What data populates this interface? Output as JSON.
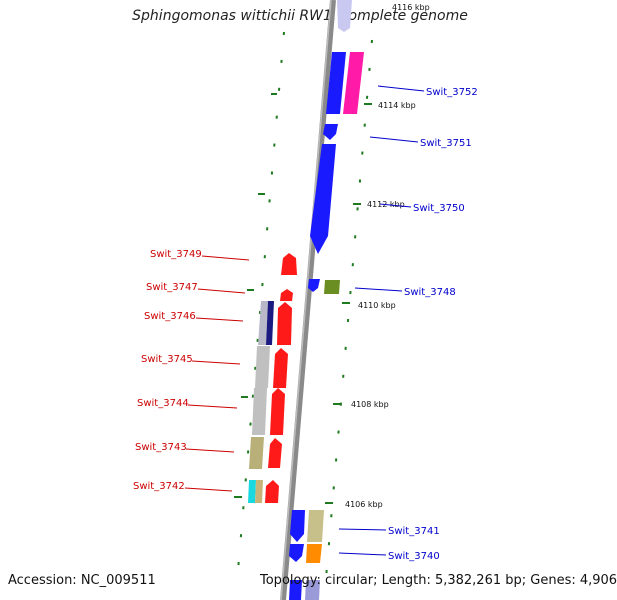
{
  "title": "Sphingomonas wittichii RW1, complete genome",
  "accession_text": "Accession: NC_009511",
  "topology_text": "Topology: circular; Length: 5,382,261 bp; Genes: 4,906",
  "colors": {
    "forward_label": "#0000cc",
    "reverse_label": "#cc0000",
    "forward_gene": "#1a1aff",
    "reverse_gene": "#ff1a1a",
    "backbone": "#8a8a8a",
    "tick": "#1e7a1e"
  },
  "scale_labels": [
    "4116 kbp",
    "4114 kbp",
    "4112 kbp",
    "4110 kbp",
    "4108 kbp",
    "4106 kbp"
  ],
  "gene_labels_forward": [
    "Swit_3752",
    "Swit_3751",
    "Swit_3750",
    "Swit_3748",
    "Swit_3741",
    "Swit_3740"
  ],
  "gene_labels_reverse": [
    "Swit_3749",
    "Swit_3747",
    "Swit_3746",
    "Swit_3745",
    "Swit_3744",
    "Swit_3743",
    "Swit_3742"
  ]
}
